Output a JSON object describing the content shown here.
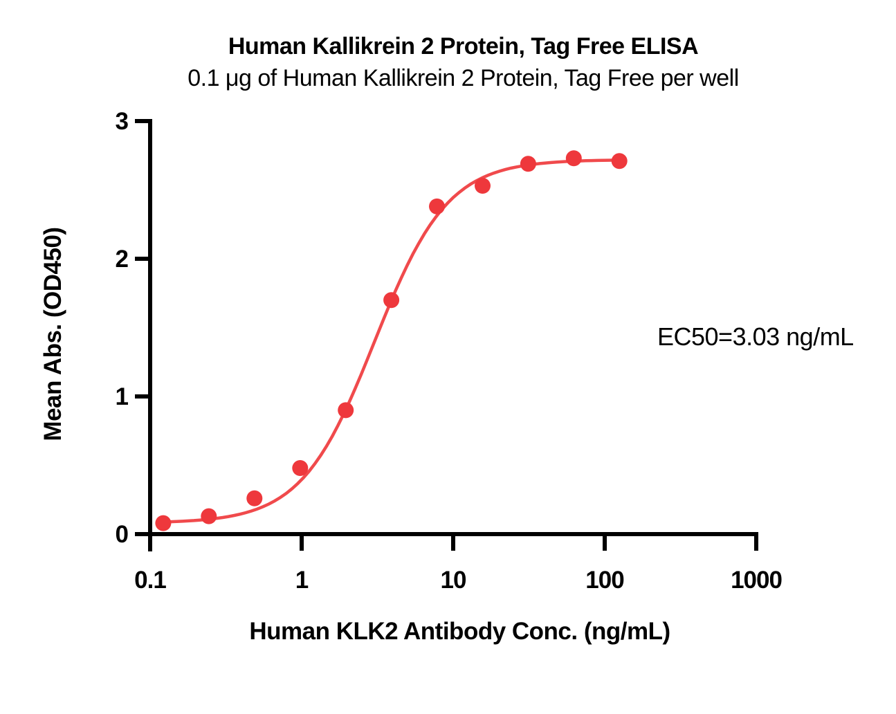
{
  "chart_data": {
    "type": "scatter",
    "title": "Human Kallikrein 2 Protein, Tag Free ELISA",
    "subtitle": "0.1 μg of Human Kallikrein 2 Protein, Tag Free per well",
    "xlabel": "Human KLK2 Antibody Conc. (ng/mL)",
    "ylabel": "Mean Abs. (OD450)",
    "annotation": "EC50=3.03 ng/mL",
    "x_scale": "log",
    "xlim": [
      0.1,
      1000
    ],
    "ylim": [
      0,
      3
    ],
    "x_tick_labels": [
      "0.1",
      "1",
      "10",
      "100",
      "1000"
    ],
    "x_tick_values": [
      0.1,
      1,
      10,
      100,
      1000
    ],
    "y_tick_labels": [
      "0",
      "1",
      "2",
      "3"
    ],
    "y_tick_values": [
      0,
      1,
      2,
      3
    ],
    "grid": false,
    "legend": "none",
    "series": [
      {
        "name": "Human KLK2 Antibody",
        "x": [
          0.122,
          0.244,
          0.488,
          0.977,
          1.953,
          3.906,
          7.813,
          15.63,
          31.25,
          62.5,
          125
        ],
        "y": [
          0.08,
          0.13,
          0.26,
          0.48,
          0.9,
          1.7,
          2.38,
          2.53,
          2.69,
          2.73,
          2.71
        ]
      }
    ],
    "fit_curve": {
      "model": "4PL",
      "ec50_ng_ml": 3.03,
      "bottom": 0.08,
      "top": 2.72,
      "hill": 1.8,
      "x_start": 0.115,
      "x_end": 127
    },
    "colors": {
      "marker": "#ee383c",
      "curve": "#f04a4c",
      "axis": "#000000",
      "text": "#000000"
    }
  }
}
